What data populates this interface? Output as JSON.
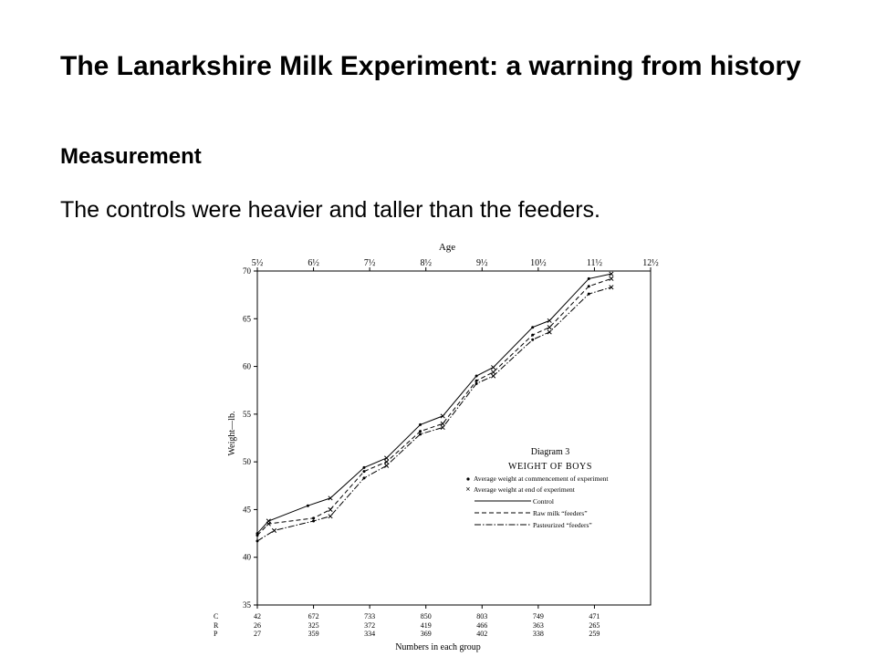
{
  "slide": {
    "title": "The Lanarkshire Milk Experiment: a warning from history",
    "subtitle": "Measurement",
    "body": "The controls were heavier and taller than the feeders."
  },
  "chart_data": {
    "type": "line",
    "top_axis_label": "Age",
    "ylabel": "Weight—lb.",
    "xlabel": "Numbers in each group",
    "ylim": [
      35,
      70
    ],
    "y_ticks": [
      35,
      40,
      45,
      50,
      55,
      60,
      65,
      70
    ],
    "xlim": [
      5.5,
      12.5
    ],
    "age_ticks": [
      "5½",
      "6½",
      "7½",
      "8½",
      "9½",
      "10½",
      "11½",
      "12½"
    ],
    "diagram_label": "Diagram 3",
    "diagram_title": "WEIGHT OF BOYS",
    "legend": {
      "start_marker": "Average weight at commencement of experiment",
      "end_marker": "Average weight at end of experiment",
      "control": "Control",
      "raw": "Raw milk “feeders”",
      "pasteurized": "Pasteurized “feeders”"
    },
    "group_rows": [
      "C",
      "R",
      "P"
    ],
    "group_counts": [
      {
        "C": "42",
        "R": "26",
        "P": "27"
      },
      {
        "C": "672",
        "R": "325",
        "P": "359"
      },
      {
        "C": "733",
        "R": "372",
        "P": "334"
      },
      {
        "C": "850",
        "R": "419",
        "P": "369"
      },
      {
        "C": "803",
        "R": "466",
        "P": "402"
      },
      {
        "C": "749",
        "R": "363",
        "P": "338"
      },
      {
        "C": "471",
        "R": "265",
        "P": "259"
      }
    ],
    "series": [
      {
        "name": "Control",
        "style": "solid",
        "points": [
          [
            5.5,
            42.5
          ],
          [
            5.7,
            43.8
          ],
          [
            6.4,
            45.4
          ],
          [
            6.8,
            46.2
          ],
          [
            7.4,
            49.4
          ],
          [
            7.8,
            50.4
          ],
          [
            8.4,
            53.9
          ],
          [
            8.8,
            54.8
          ],
          [
            9.4,
            59.0
          ],
          [
            9.7,
            59.9
          ],
          [
            10.4,
            64.1
          ],
          [
            10.7,
            64.8
          ],
          [
            11.4,
            69.2
          ],
          [
            11.8,
            69.7
          ]
        ]
      },
      {
        "name": "Raw milk “feeders”",
        "style": "dashed",
        "points": [
          [
            5.5,
            42.3
          ],
          [
            5.7,
            43.5
          ],
          [
            6.5,
            44.1
          ],
          [
            6.8,
            45.0
          ],
          [
            7.4,
            49.0
          ],
          [
            7.8,
            50.0
          ],
          [
            8.4,
            53.2
          ],
          [
            8.8,
            54.0
          ],
          [
            9.4,
            58.5
          ],
          [
            9.7,
            59.4
          ],
          [
            10.4,
            63.3
          ],
          [
            10.7,
            64.1
          ],
          [
            11.4,
            68.4
          ],
          [
            11.8,
            69.2
          ]
        ]
      },
      {
        "name": "Pasteurized “feeders”",
        "style": "dashdot",
        "points": [
          [
            5.5,
            41.7
          ],
          [
            5.8,
            42.8
          ],
          [
            6.5,
            43.8
          ],
          [
            6.8,
            44.3
          ],
          [
            7.4,
            48.3
          ],
          [
            7.8,
            49.6
          ],
          [
            8.4,
            52.9
          ],
          [
            8.8,
            53.6
          ],
          [
            9.4,
            58.2
          ],
          [
            9.7,
            59.0
          ],
          [
            10.4,
            62.8
          ],
          [
            10.7,
            63.6
          ],
          [
            11.4,
            67.6
          ],
          [
            11.8,
            68.3
          ]
        ]
      }
    ]
  }
}
